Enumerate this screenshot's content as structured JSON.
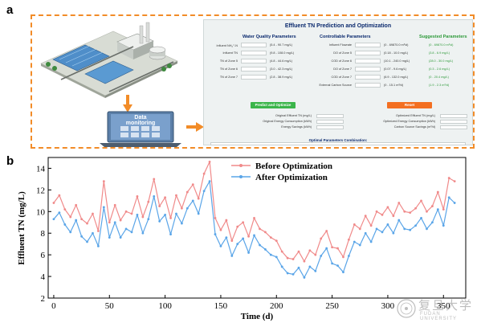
{
  "panels": {
    "a_label": "a",
    "b_label": "b"
  },
  "illustration": {
    "laptop_label": "Data\nmonitoring"
  },
  "software": {
    "title": "Effluent TN Prediction and Optimization",
    "headers": {
      "quality": "Water Quality Parameters",
      "controllable": "Controllable Parameters",
      "suggested": "Suggested Parameters"
    },
    "quality_rows": [
      {
        "label": "Influent NH₄⁺-N",
        "range": "(5.4 - 90.7 mg/L)"
      },
      {
        "label": "Influent TN",
        "range": "(9.8 - 108.0 mg/L)"
      },
      {
        "label": "TN of Zone 5",
        "range": "(4.8 - 44.6 mg/L)"
      },
      {
        "label": "TN of Zone 6",
        "range": "(3.0 - 42.3 mg/L)"
      },
      {
        "label": "TN of Zone 7",
        "range": "(2.8 - 38.9 mg/L)"
      }
    ],
    "control_rows": [
      {
        "label": "Influent Flowrate",
        "range": "(0 - 69870.0 m³/d)",
        "suggest": "(0 - 69870.0 m³/d)"
      },
      {
        "label": "DO of Zone 5",
        "range": "(0.18 - 10.0 mg/L)",
        "suggest": "(3.8 - 6.9 mg/L)"
      },
      {
        "label": "COD of Zone 6",
        "range": "(10.1 - 240.0 mg/L)",
        "suggest": "(28.0 - 30.0 mg/L)"
      },
      {
        "label": "DO of Zone 7",
        "range": "(0.07 - 9.6 mg/L)",
        "suggest": "(0.3 - 2.6 mg/L)"
      },
      {
        "label": "COD of Zone 7",
        "range": "(6.9 - 132.0 mg/L)",
        "suggest": "(0 - 20.4 mg/L)"
      },
      {
        "label": "External Carbon Source",
        "range": "(0 - 15.1 m³/d)",
        "suggest": "(1.9 - 2.3 m³/d)"
      }
    ],
    "buttons": {
      "predict": "Predict and Optimize",
      "reset": "Reset"
    },
    "outputs_left": [
      "Original Effluent TN (mg/L)",
      "Original Energy Consumption (kWh)",
      "Energy Savings (kWh)"
    ],
    "outputs_right": [
      "Optimized Effluent TN (mg/L)",
      "Optimized Energy Consumption (kWh)",
      "Carbon Source Savings (m³/d)"
    ],
    "combination_title": "Optimal Parameters Combination:"
  },
  "colors": {
    "before": "#f08a8a",
    "after": "#5aa5e8",
    "frame": "#f28c28",
    "predict_button": "#3bb54a",
    "reset_button": "#f36f21"
  },
  "chart_data": {
    "type": "line",
    "xlabel": "Time (d)",
    "ylabel": "Effluent TN (mg/L)",
    "xlim": [
      -5,
      370
    ],
    "ylim": [
      2,
      15
    ],
    "xticks": [
      0,
      50,
      100,
      150,
      200,
      250,
      300,
      350
    ],
    "yticks": [
      2,
      4,
      6,
      8,
      10,
      12,
      14
    ],
    "legend_position": "top-center",
    "series": [
      {
        "name": "Before Optimization",
        "color": "#f08a8a",
        "x": [
          0,
          5,
          10,
          15,
          20,
          25,
          30,
          35,
          40,
          45,
          50,
          55,
          60,
          65,
          70,
          75,
          80,
          85,
          90,
          95,
          100,
          105,
          110,
          115,
          120,
          125,
          130,
          135,
          140,
          145,
          150,
          155,
          160,
          165,
          170,
          175,
          180,
          185,
          190,
          195,
          200,
          205,
          210,
          215,
          220,
          225,
          230,
          235,
          240,
          245,
          250,
          255,
          260,
          265,
          270,
          275,
          280,
          285,
          290,
          295,
          300,
          305,
          310,
          315,
          320,
          325,
          330,
          335,
          340,
          345,
          350,
          355,
          360
        ],
        "y": [
          10.8,
          11.5,
          10.2,
          9.5,
          10.6,
          9.3,
          8.9,
          9.8,
          8.2,
          12.8,
          9.0,
          10.6,
          9.2,
          10.0,
          9.8,
          11.4,
          9.5,
          10.9,
          13.0,
          10.5,
          11.3,
          9.4,
          11.5,
          10.3,
          11.8,
          12.5,
          11.2,
          13.5,
          14.6,
          9.4,
          8.3,
          9.2,
          7.3,
          8.6,
          9.0,
          7.7,
          9.4,
          8.4,
          8.1,
          7.6,
          7.3,
          6.3,
          5.7,
          5.6,
          6.3,
          5.4,
          6.4,
          6.0,
          7.5,
          8.2,
          6.7,
          6.6,
          5.8,
          7.4,
          8.8,
          8.4,
          9.6,
          8.7,
          10.0,
          9.7,
          10.4,
          9.6,
          10.8,
          10.0,
          9.9,
          10.3,
          11.0,
          10.0,
          10.5,
          11.8,
          10.2,
          13.1,
          12.8
        ]
      },
      {
        "name": "After Optimization",
        "color": "#5aa5e8",
        "x": [
          0,
          5,
          10,
          15,
          20,
          25,
          30,
          35,
          40,
          45,
          50,
          55,
          60,
          65,
          70,
          75,
          80,
          85,
          90,
          95,
          100,
          105,
          110,
          115,
          120,
          125,
          130,
          135,
          140,
          145,
          150,
          155,
          160,
          165,
          170,
          175,
          180,
          185,
          190,
          195,
          200,
          205,
          210,
          215,
          220,
          225,
          230,
          235,
          240,
          245,
          250,
          255,
          260,
          265,
          270,
          275,
          280,
          285,
          290,
          295,
          300,
          305,
          310,
          315,
          320,
          325,
          330,
          335,
          340,
          345,
          350,
          355,
          360
        ],
        "y": [
          9.3,
          9.9,
          8.8,
          8.1,
          9.2,
          7.7,
          7.2,
          8.0,
          6.8,
          10.4,
          7.6,
          9.0,
          7.6,
          8.4,
          8.1,
          9.7,
          8.0,
          9.3,
          11.4,
          9.1,
          9.7,
          7.9,
          9.8,
          8.9,
          10.3,
          11.0,
          9.8,
          11.9,
          12.8,
          7.9,
          6.8,
          7.6,
          5.9,
          7.0,
          7.5,
          6.2,
          7.8,
          6.9,
          6.5,
          6.0,
          5.8,
          4.9,
          4.3,
          4.2,
          4.8,
          3.9,
          4.9,
          4.5,
          5.9,
          6.6,
          5.2,
          5.0,
          4.4,
          5.9,
          7.2,
          6.9,
          8.0,
          7.2,
          8.4,
          8.1,
          8.8,
          8.0,
          9.2,
          8.4,
          8.3,
          8.7,
          9.4,
          8.4,
          9.0,
          10.2,
          8.7,
          11.3,
          10.8
        ]
      }
    ]
  },
  "watermark": {
    "chinese": "复旦大学",
    "english": "FUDAN UNIVERSITY"
  }
}
